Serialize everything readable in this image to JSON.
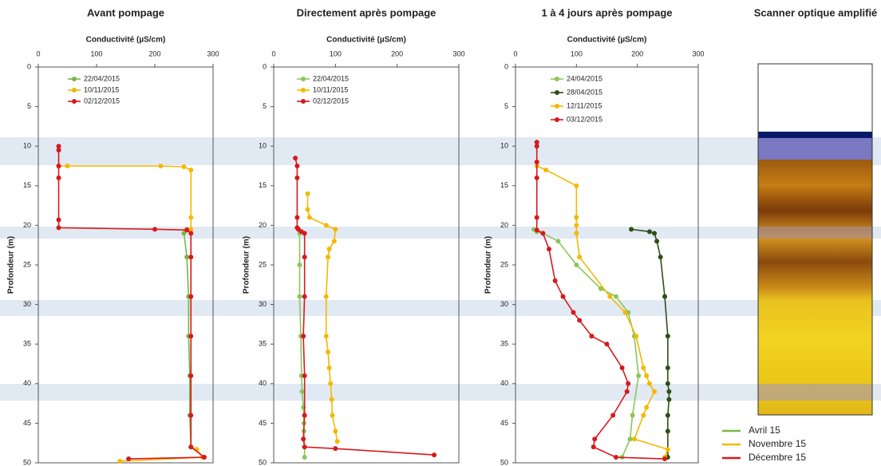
{
  "chart_data": [
    {
      "type": "line",
      "title": "Avant pompage",
      "xlabel": "Conductivité (µS/cm)",
      "ylabel": "Profondeur (m)",
      "xlim": [
        0,
        300
      ],
      "xticks": [
        0,
        100,
        200,
        300
      ],
      "ylim": [
        0,
        50
      ],
      "yticks": [
        0,
        5,
        10,
        15,
        20,
        25,
        30,
        35,
        40,
        45,
        50
      ],
      "series": [
        {
          "name": "22/04/2015",
          "color": "#7ab648",
          "x": [
            255,
            250,
            255,
            258,
            258,
            260,
            260,
            262
          ],
          "y": [
            20.5,
            21,
            24,
            29,
            34,
            39,
            44,
            48
          ]
        },
        {
          "name": "10/11/2015",
          "color": "#f5b800",
          "x": [
            35,
            50,
            210,
            250,
            262,
            262,
            262,
            262,
            272,
            282,
            140
          ],
          "y": [
            12.5,
            12.5,
            12.5,
            12.6,
            13,
            19,
            20.5,
            48,
            48.3,
            49.3,
            49.8
          ]
        },
        {
          "name": "02/12/2015",
          "color": "#d7191c",
          "x": [
            35,
            35,
            35,
            35,
            35,
            35,
            200,
            255,
            262,
            262,
            262,
            262,
            262,
            262,
            262,
            285,
            155
          ],
          "y": [
            10,
            10.5,
            12.5,
            14,
            19.3,
            20.3,
            20.5,
            20.6,
            21,
            24,
            29,
            34,
            39,
            44,
            48,
            49.3,
            49.5
          ]
        }
      ]
    },
    {
      "type": "line",
      "title": "Directement après pompage",
      "xlabel": "Conductivité (µS/cm)",
      "ylabel": "Profondeur (m)",
      "xlim": [
        0,
        300
      ],
      "xticks": [
        0,
        100,
        200,
        300
      ],
      "ylim": [
        0,
        50
      ],
      "yticks": [
        0,
        5,
        10,
        15,
        20,
        25,
        30,
        35,
        40,
        45,
        50
      ],
      "series": [
        {
          "name": "22/04/2015",
          "color": "#8cc65a",
          "x": [
            40,
            42,
            42,
            42,
            44,
            45,
            46,
            48,
            49,
            49,
            50,
            50
          ],
          "y": [
            20.5,
            21,
            25,
            29,
            34,
            39,
            41,
            43,
            45,
            46,
            48,
            49.3
          ]
        },
        {
          "name": "10/11/2015",
          "color": "#f5b800",
          "x": [
            55,
            55,
            58,
            85,
            100,
            98,
            90,
            88,
            85,
            85,
            88,
            90,
            92,
            94,
            95,
            100,
            103
          ],
          "y": [
            16,
            18,
            19,
            20,
            20.5,
            22,
            23,
            24,
            29,
            34,
            36,
            38,
            40,
            42,
            44,
            46,
            47.3
          ]
        },
        {
          "name": "02/12/2015",
          "color": "#d7191c",
          "x": [
            35,
            38,
            38,
            38,
            38,
            40,
            45,
            50,
            50,
            50,
            48,
            50,
            50,
            48,
            50,
            100,
            260
          ],
          "y": [
            11.5,
            12.5,
            14,
            19,
            20.3,
            20.5,
            20.8,
            21,
            24,
            29,
            34,
            39,
            44,
            47,
            48,
            48.2,
            49
          ]
        }
      ]
    },
    {
      "type": "line",
      "title": "1 à 4 jours après pompage",
      "xlabel": "Conductivité (µS/cm)",
      "ylabel": "Profondeur (m)",
      "xlim": [
        0,
        300
      ],
      "xticks": [
        0,
        100,
        200,
        300
      ],
      "ylim": [
        0,
        50
      ],
      "yticks": [
        0,
        5,
        10,
        15,
        20,
        25,
        30,
        35,
        40,
        45,
        50
      ],
      "series": [
        {
          "name": "24/04/2015",
          "color": "#8cc65a",
          "x": [
            30,
            35,
            45,
            70,
            100,
            140,
            165,
            185,
            195,
            202,
            192,
            188,
            175
          ],
          "y": [
            20.5,
            20.8,
            21,
            22,
            25,
            28,
            29,
            31,
            34,
            39,
            44,
            47,
            49.3
          ]
        },
        {
          "name": "28/04/2015",
          "color": "#2d5016",
          "x": [
            190,
            220,
            228,
            232,
            238,
            245,
            250,
            250,
            250,
            252,
            252,
            250,
            250,
            250
          ],
          "y": [
            20.5,
            20.8,
            21,
            22,
            24,
            29,
            34,
            38,
            40,
            41,
            42,
            44,
            46,
            49.3
          ]
        },
        {
          "name": "12/11/2015",
          "color": "#f5b800",
          "x": [
            35,
            50,
            100,
            100,
            100,
            100,
            105,
            155,
            180,
            198,
            210,
            215,
            220,
            228,
            215,
            210,
            195,
            250,
            245
          ],
          "y": [
            12.5,
            13,
            15,
            19,
            20,
            21,
            24,
            29,
            31,
            34,
            38,
            39,
            40,
            41,
            43,
            44,
            47,
            48.3,
            49.3
          ]
        },
        {
          "name": "03/12/2015",
          "color": "#d7191c",
          "x": [
            35,
            35,
            35,
            35,
            35,
            35,
            45,
            55,
            65,
            78,
            95,
            105,
            125,
            150,
            175,
            185,
            183,
            160,
            130,
            128,
            165,
            245
          ],
          "y": [
            9.5,
            10,
            12,
            14,
            19,
            20.6,
            21,
            23,
            27,
            29,
            31,
            32,
            34,
            35,
            38,
            40,
            41,
            44,
            47,
            48,
            49.3,
            49.5
          ]
        }
      ]
    }
  ],
  "scanner": {
    "title": "Scanner optique amplifié"
  },
  "legend": [
    {
      "label": "Avril 15",
      "color": "#7ab648"
    },
    {
      "label": "Novembre 15",
      "color": "#f5b800"
    },
    {
      "label": "Décembre 15",
      "color": "#d7191c"
    }
  ]
}
